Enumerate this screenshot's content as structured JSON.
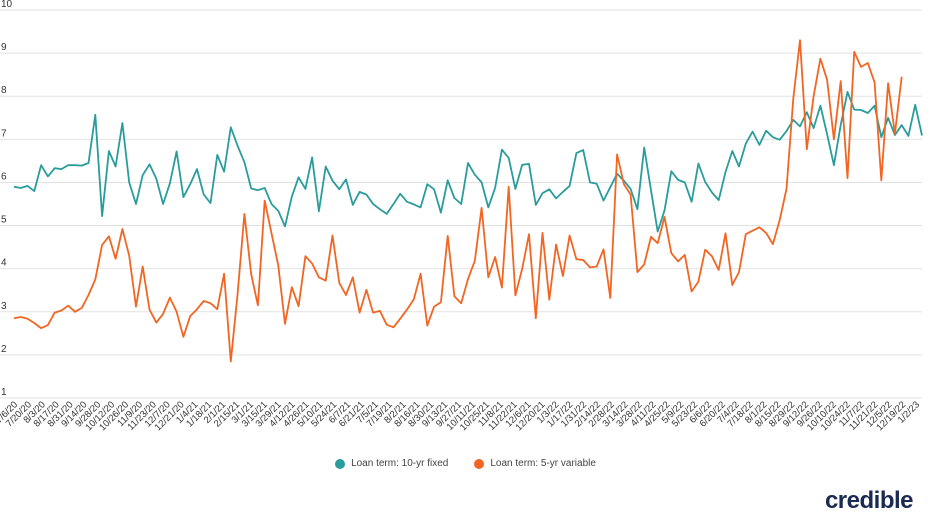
{
  "chart_data": {
    "type": "line",
    "title": "",
    "xlabel": "",
    "ylabel": "",
    "ylim": [
      1,
      10
    ],
    "yticks": [
      1,
      2,
      3,
      4,
      5,
      6,
      7,
      8,
      9,
      10
    ],
    "grid": "horizontal",
    "legend_position": "bottom-center",
    "x_tick_labels": [
      "7/6/20",
      "7/20/20",
      "8/3/20",
      "8/17/20",
      "8/31/20",
      "9/14/20",
      "9/28/20",
      "10/12/20",
      "10/26/20",
      "11/9/20",
      "11/23/20",
      "12/7/20",
      "12/21/20",
      "1/4/21",
      "1/18/21",
      "2/1/21",
      "2/15/21",
      "3/1/21",
      "3/15/21",
      "3/29/21",
      "4/12/21",
      "4/26/21",
      "5/10/21",
      "5/24/21",
      "6/7/21",
      "6/21/21",
      "7/5/21",
      "7/19/21",
      "8/2/21",
      "8/16/21",
      "8/30/21",
      "9/13/21",
      "9/27/21",
      "10/11/21",
      "10/25/21",
      "11/8/21",
      "11/22/21",
      "12/6/21",
      "12/20/21",
      "1/3/22",
      "1/17/22",
      "1/31/22",
      "2/14/22",
      "2/28/22",
      "3/14/22",
      "3/28/22",
      "4/11/22",
      "4/25/22",
      "5/9/22",
      "5/23/22",
      "6/6/22",
      "6/20/22",
      "7/4/22",
      "7/18/22",
      "8/1/22",
      "8/15/22",
      "8/29/22",
      "9/12/22",
      "9/26/22",
      "10/10/22",
      "10/24/22",
      "11/7/22",
      "11/21/22",
      "12/5/22",
      "12/19/22",
      "1/2/23"
    ],
    "series": [
      {
        "name": "Loan term: 10-yr fixed",
        "color": "#2a9c9c",
        "values": [
          5.9,
          5.87,
          5.92,
          5.8,
          6.4,
          6.14,
          6.33,
          6.31,
          6.4,
          6.4,
          6.39,
          6.45,
          7.57,
          5.22,
          6.73,
          6.37,
          7.38,
          6.0,
          5.5,
          6.17,
          6.42,
          6.09,
          5.5,
          5.98,
          6.72,
          5.66,
          5.96,
          6.31,
          5.72,
          5.52,
          6.64,
          6.25,
          7.28,
          6.85,
          6.47,
          5.86,
          5.82,
          5.87,
          5.5,
          5.34,
          4.98,
          5.67,
          6.12,
          5.85,
          6.58,
          5.33,
          6.37,
          6.04,
          5.84,
          6.07,
          5.48,
          5.78,
          5.72,
          5.5,
          5.38,
          5.27,
          5.5,
          5.74,
          5.55,
          5.49,
          5.42,
          5.96,
          5.84,
          5.3,
          6.05,
          5.64,
          5.5,
          6.45,
          6.18,
          6.0,
          5.42,
          5.87,
          6.76,
          6.57,
          5.85,
          6.41,
          6.43,
          5.48,
          5.75,
          5.84,
          5.63,
          5.78,
          5.92,
          6.68,
          6.75,
          6.0,
          5.97,
          5.58,
          5.89,
          6.2,
          6.04,
          5.85,
          5.38,
          6.81,
          5.82,
          4.86,
          5.35,
          6.26,
          6.06,
          6.0,
          5.55,
          6.44,
          6.01,
          5.77,
          5.59,
          6.24,
          6.73,
          6.37,
          6.9,
          7.18,
          6.87,
          7.2,
          7.05,
          6.99,
          7.19,
          7.45,
          7.3,
          7.63,
          7.26,
          7.78,
          7.12,
          6.4,
          7.33,
          8.1,
          7.69,
          7.68,
          7.61,
          7.78,
          7.05,
          7.5,
          7.1,
          7.33,
          7.08,
          7.8,
          7.09
        ]
      },
      {
        "name": "Loan term: 5-yr variable",
        "color": "#f26522",
        "values": [
          2.85,
          2.88,
          2.84,
          2.74,
          2.62,
          2.69,
          2.98,
          3.03,
          3.14,
          3.0,
          3.09,
          3.39,
          3.75,
          4.55,
          4.75,
          4.23,
          4.92,
          4.3,
          3.12,
          4.05,
          3.05,
          2.75,
          2.95,
          3.33,
          3.0,
          2.42,
          2.9,
          3.06,
          3.25,
          3.2,
          3.06,
          3.88,
          1.85,
          3.42,
          5.27,
          3.87,
          3.15,
          5.58,
          4.82,
          4.07,
          2.72,
          3.57,
          3.13,
          4.29,
          4.12,
          3.8,
          3.72,
          4.77,
          3.67,
          3.39,
          3.8,
          2.98,
          3.51,
          2.98,
          3.02,
          2.7,
          2.64,
          2.84,
          3.05,
          3.29,
          3.88,
          2.68,
          3.12,
          3.22,
          4.76,
          3.36,
          3.2,
          3.76,
          4.18,
          5.41,
          3.8,
          4.27,
          3.56,
          5.9,
          3.38,
          4.0,
          4.8,
          2.85,
          4.83,
          3.28,
          4.56,
          3.83,
          4.77,
          4.22,
          4.2,
          4.03,
          4.05,
          4.45,
          3.32,
          6.65,
          5.96,
          5.72,
          3.92,
          4.1,
          4.74,
          4.59,
          5.2,
          4.36,
          4.17,
          4.32,
          3.47,
          3.7,
          4.44,
          4.29,
          3.97,
          4.82,
          3.62,
          3.92,
          4.8,
          4.88,
          4.96,
          4.83,
          4.57,
          5.13,
          5.85,
          7.95,
          9.3,
          6.77,
          8.0,
          8.87,
          8.38,
          7.0,
          8.35,
          6.1,
          9.03,
          8.68,
          8.77,
          8.32,
          6.05,
          8.3,
          7.13,
          8.45
        ]
      }
    ]
  },
  "brand": {
    "name": "credible",
    "color": "#1a2a52"
  }
}
